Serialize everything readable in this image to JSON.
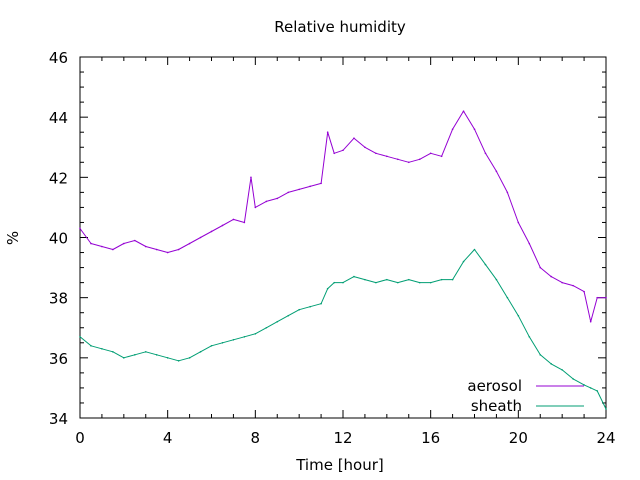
{
  "chart_data": {
    "type": "line",
    "title": "Relative humidity",
    "xlabel": "Time [hour]",
    "ylabel": "%",
    "xlim": [
      0,
      24
    ],
    "ylim": [
      34,
      46
    ],
    "xticks": [
      0,
      4,
      8,
      12,
      16,
      20,
      24
    ],
    "yticks": [
      34,
      36,
      38,
      40,
      42,
      44,
      46
    ],
    "grid": false,
    "legend_position": "bottom-right",
    "series": [
      {
        "name": "aerosol",
        "color": "#9400d3",
        "x": [
          0,
          0.5,
          1,
          1.5,
          2,
          2.5,
          3,
          3.5,
          4,
          4.5,
          5,
          5.5,
          6,
          6.5,
          7,
          7.5,
          7.8,
          8,
          8.5,
          9,
          9.5,
          10,
          10.5,
          11,
          11.3,
          11.6,
          12,
          12.5,
          13,
          13.5,
          14,
          14.5,
          15,
          15.5,
          16,
          16.5,
          17,
          17.5,
          18,
          18.5,
          19,
          19.5,
          20,
          20.5,
          21,
          21.5,
          22,
          22.5,
          23,
          23.3,
          23.6,
          24
        ],
        "values": [
          40.3,
          39.8,
          39.7,
          39.6,
          39.8,
          39.9,
          39.7,
          39.6,
          39.5,
          39.6,
          39.8,
          40.0,
          40.2,
          40.4,
          40.6,
          40.5,
          42.0,
          41.0,
          41.2,
          41.3,
          41.5,
          41.6,
          41.7,
          41.8,
          43.5,
          42.8,
          42.9,
          43.3,
          43.0,
          42.8,
          42.7,
          42.6,
          42.5,
          42.6,
          42.8,
          42.7,
          43.6,
          44.2,
          43.6,
          42.8,
          42.2,
          41.5,
          40.5,
          39.8,
          39.0,
          38.7,
          38.5,
          38.4,
          38.2,
          37.2,
          38.0,
          38.0
        ]
      },
      {
        "name": "sheath",
        "color": "#009e73",
        "x": [
          0,
          0.5,
          1,
          1.5,
          2,
          2.5,
          3,
          3.5,
          4,
          4.5,
          5,
          5.5,
          6,
          6.5,
          7,
          7.5,
          8,
          8.5,
          9,
          9.5,
          10,
          10.5,
          11,
          11.3,
          11.6,
          12,
          12.5,
          13,
          13.5,
          14,
          14.5,
          15,
          15.5,
          16,
          16.5,
          17,
          17.5,
          18,
          18.5,
          19,
          19.5,
          20,
          20.5,
          21,
          21.5,
          22,
          22.5,
          23,
          23.3,
          23.6,
          24
        ],
        "values": [
          36.7,
          36.4,
          36.3,
          36.2,
          36.0,
          36.1,
          36.2,
          36.1,
          36.0,
          35.9,
          36.0,
          36.2,
          36.4,
          36.5,
          36.6,
          36.7,
          36.8,
          37.0,
          37.2,
          37.4,
          37.6,
          37.7,
          37.8,
          38.3,
          38.5,
          38.5,
          38.7,
          38.6,
          38.5,
          38.6,
          38.5,
          38.6,
          38.5,
          38.5,
          38.6,
          38.6,
          39.2,
          39.6,
          39.1,
          38.6,
          38.0,
          37.4,
          36.7,
          36.1,
          35.8,
          35.6,
          35.3,
          35.1,
          35.0,
          34.9,
          34.3
        ]
      }
    ]
  }
}
